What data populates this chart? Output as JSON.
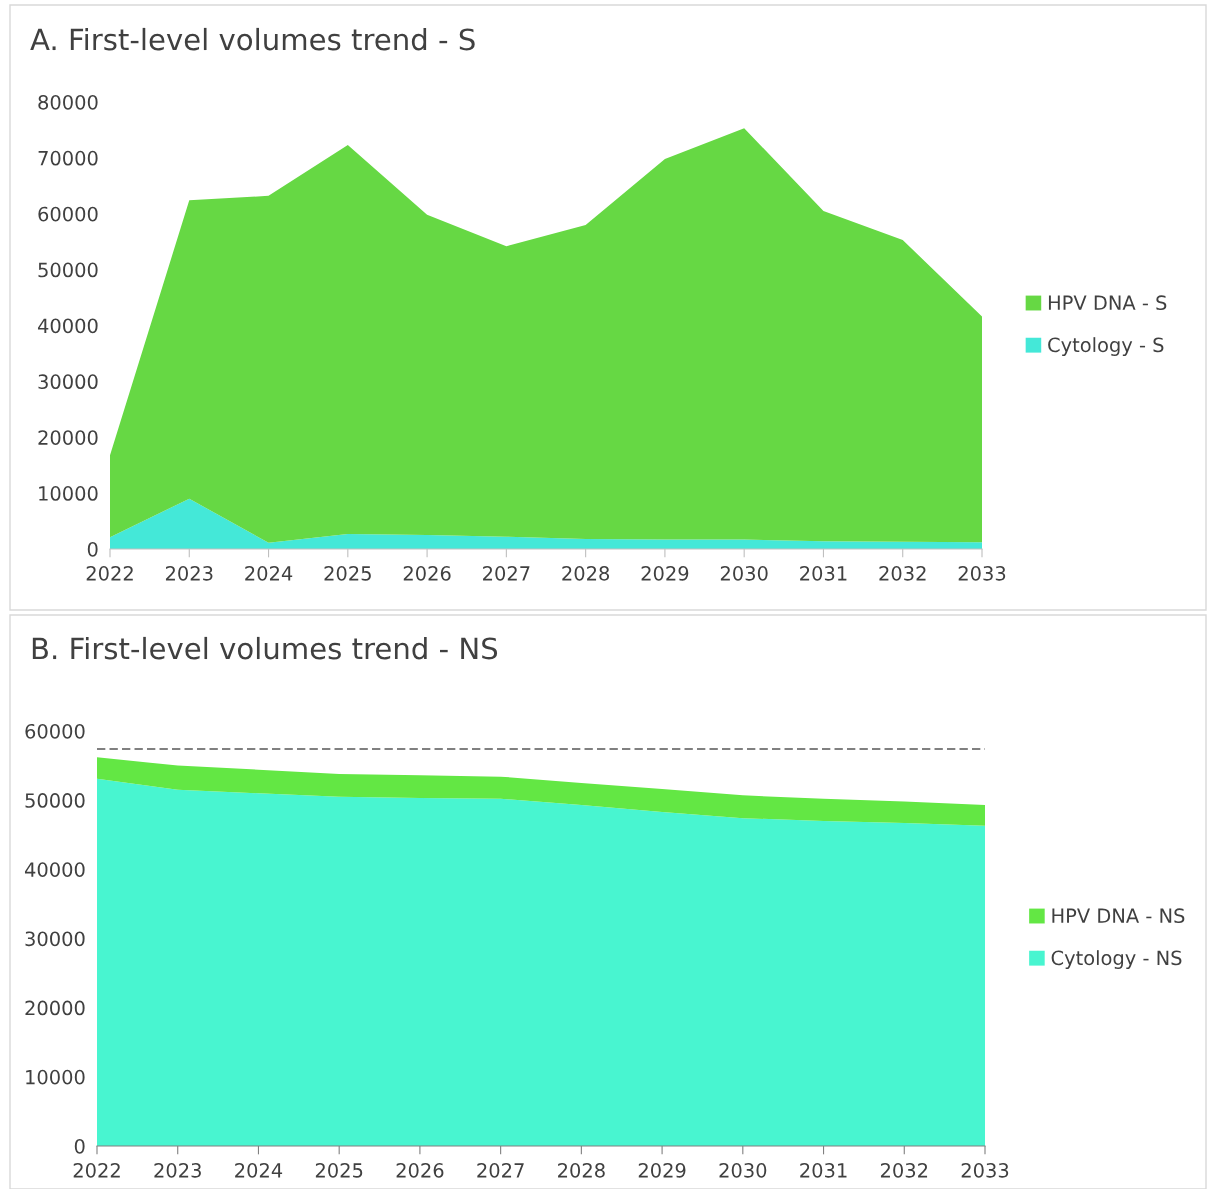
{
  "chart_data": [
    {
      "type": "area",
      "title": "A. First-level volumes trend - S",
      "stacked": true,
      "legend": "right",
      "grid": false,
      "categories": [
        "2022",
        "2023",
        "2024",
        "2025",
        "2026",
        "2027",
        "2028",
        "2029",
        "2030",
        "2031",
        "2032",
        "2033"
      ],
      "ylim": [
        0,
        80000
      ],
      "yticks": [
        0,
        10000,
        20000,
        30000,
        40000,
        50000,
        60000,
        70000,
        80000
      ],
      "series": [
        {
          "name": "Cytology - S",
          "color": "#44e8d8",
          "values": [
            2100,
            9000,
            1100,
            2700,
            2500,
            2200,
            1800,
            1700,
            1700,
            1400,
            1300,
            1200
          ]
        },
        {
          "name": "HPV DNA - S",
          "color": "#66d844",
          "values": [
            14700,
            53400,
            62100,
            69600,
            57300,
            52000,
            56200,
            68100,
            73600,
            59100,
            54000,
            40400
          ]
        }
      ]
    },
    {
      "type": "area",
      "title": "B. First-level volumes trend - NS",
      "stacked": true,
      "legend": "right",
      "grid": false,
      "categories": [
        "2022",
        "2023",
        "2024",
        "2025",
        "2026",
        "2027",
        "2028",
        "2029",
        "2030",
        "2031",
        "2032",
        "2033"
      ],
      "ylim": [
        0,
        60000
      ],
      "yticks": [
        0,
        10000,
        20000,
        30000,
        40000,
        50000,
        60000
      ],
      "ref_lines": [
        {
          "axis": "y",
          "value": 57400,
          "label": null,
          "color": "#808080",
          "line_style": "dashed"
        }
      ],
      "series": [
        {
          "name": "Cytology - NS",
          "color": "#48f5d0",
          "values": [
            53100,
            51500,
            51000,
            50500,
            50300,
            50200,
            49300,
            48300,
            47400,
            47000,
            46700,
            46300
          ]
        },
        {
          "name": "HPV DNA - NS",
          "color": "#63e744",
          "values": [
            3100,
            3500,
            3400,
            3300,
            3300,
            3200,
            3200,
            3300,
            3300,
            3200,
            3100,
            3000
          ]
        }
      ]
    }
  ]
}
